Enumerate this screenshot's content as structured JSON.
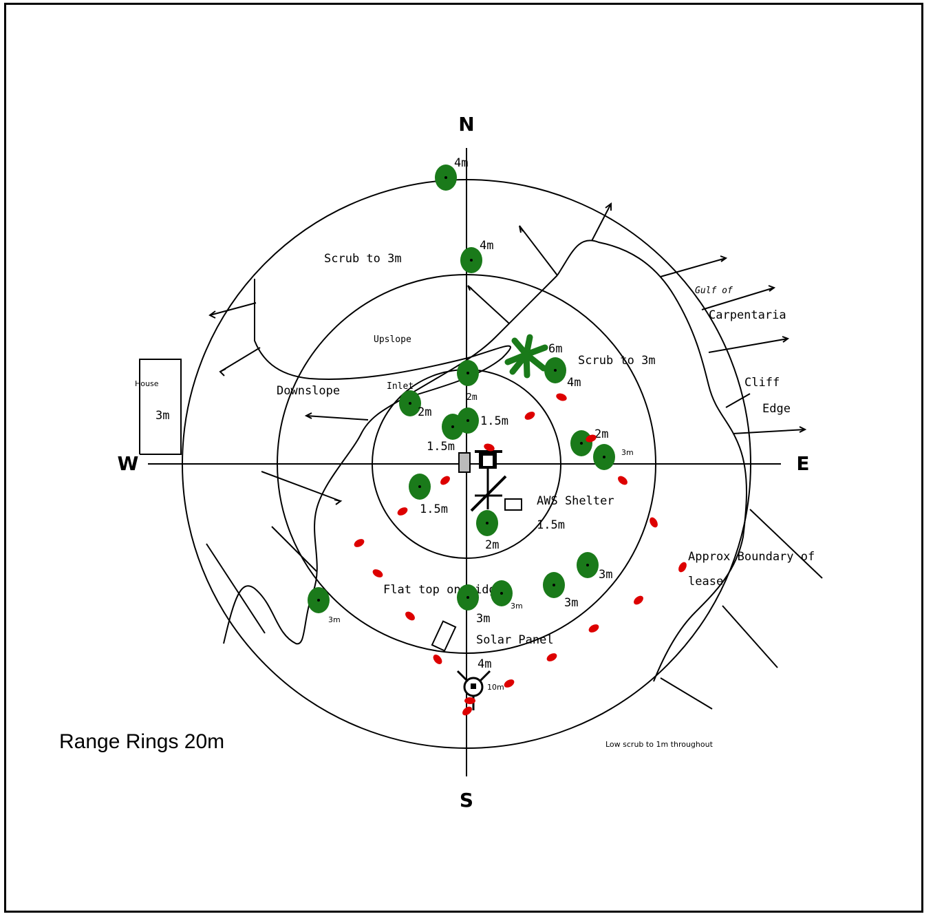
{
  "compass": {
    "n": "N",
    "s": "S",
    "e": "E",
    "w": "W"
  },
  "range_note": "Range Rings 20m",
  "bottom_note": "Low scrub to 1m throughout",
  "labels": {
    "scrub_north": "Scrub to 3m",
    "scrub_east": "Scrub to 3m",
    "upslope": "Upslope",
    "downslope": "Downslope",
    "inlet": "Inlet",
    "house": "House",
    "house_h": "3m",
    "gulf_1": "Gulf of",
    "gulf_2": "Carpentaria",
    "cliff_1": "Cliff",
    "cliff_2": "Edge",
    "aws": "AWS Shelter",
    "boundary_1": "Approx Boundary of",
    "boundary_2": "lease",
    "flat_top": "Flat top on ridge",
    "solar": "Solar Panel"
  },
  "trees": [
    {
      "h": "4m"
    },
    {
      "h": "4m"
    },
    {
      "h": "2m"
    },
    {
      "h": "2m"
    },
    {
      "h": "1.5m"
    },
    {
      "h": "1.5m"
    },
    {
      "h": "4m"
    },
    {
      "h": "2m"
    },
    {
      "h": "3m"
    },
    {
      "h": "1.5m"
    },
    {
      "h": "2m"
    },
    {
      "h": "3m"
    },
    {
      "h": "3m"
    },
    {
      "h": "3m"
    },
    {
      "h": "3m"
    },
    {
      "h": "3m"
    },
    {
      "h": "4m"
    }
  ],
  "palm_h": "6m",
  "aws_h": "1.5m",
  "tower_h": "10m",
  "colors": {
    "tree": "#1a7a1a",
    "shrub": "#dd0000",
    "ink": "#000000"
  }
}
